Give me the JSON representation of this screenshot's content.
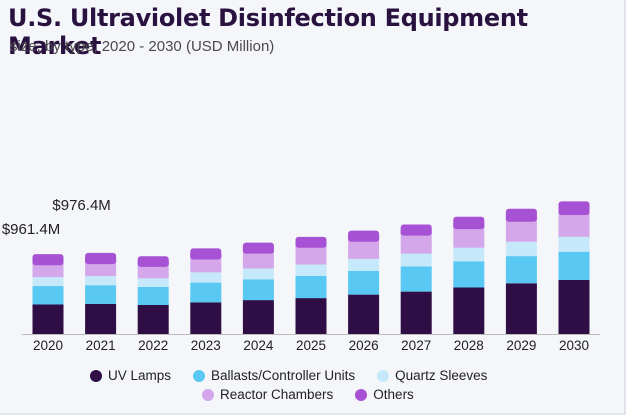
{
  "header": {
    "title": "U.S. Ultraviolet Disinfection Equipment Market",
    "subtitle": "size, by type, 2020 - 2030 (USD Million)"
  },
  "chart_data": {
    "type": "bar",
    "stacked": true,
    "title": "U.S. Ultraviolet Disinfection Equipment Market",
    "subtitle": "size, by type, 2020 - 2030 (USD Million)",
    "xlabel": "",
    "ylabel": "",
    "ylim": [
      0,
      3200
    ],
    "grid": false,
    "legend_position": "bottom",
    "categories": [
      "2020",
      "2021",
      "2022",
      "2023",
      "2024",
      "2025",
      "2026",
      "2027",
      "2028",
      "2029",
      "2030"
    ],
    "series": [
      {
        "name": "UV Lamps",
        "color": "#2e0e45",
        "values": [
          355,
          362,
          350,
          380,
          408,
          432,
          474,
          510,
          560,
          610,
          650
        ]
      },
      {
        "name": "Ballasts/Controller Units",
        "color": "#59c8f2",
        "values": [
          222,
          225,
          216,
          238,
          250,
          266,
          285,
          303,
          315,
          327,
          340
        ]
      },
      {
        "name": "Quartz Sleeves",
        "color": "#c5e9fb",
        "values": [
          108,
          110,
          104,
          122,
          130,
          138,
          145,
          155,
          163,
          172,
          180
        ]
      },
      {
        "name": "Reactor Chambers",
        "color": "#d3a7ea",
        "values": [
          190,
          192,
          185,
          205,
          228,
          250,
          255,
          263,
          272,
          290,
          310
        ]
      },
      {
        "name": "Others",
        "color": "#a751d4",
        "values": [
          86,
          87,
          81,
          85,
          84,
          82,
          85,
          86,
          100,
          108,
          115
        ]
      }
    ],
    "annotations": [
      {
        "text": "$961.4M",
        "category": "2020"
      },
      {
        "text": "$976.4M",
        "category": "2021"
      }
    ]
  }
}
